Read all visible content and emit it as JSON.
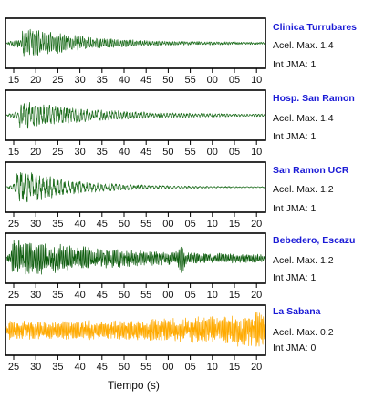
{
  "chart_data": [
    {
      "type": "line",
      "station": "Clinica Turrubares",
      "series_color": "#1a6b1a",
      "accel_label": "Acel. Max.",
      "accel_value": "1.4",
      "jma_label": "Int JMA:",
      "jma_value": "1",
      "tick_labels": [
        "15",
        "20",
        "25",
        "30",
        "35",
        "40",
        "45",
        "50",
        "55",
        "00",
        "05",
        "10"
      ],
      "waveform": {
        "onset": 0.06,
        "peak": 0.72,
        "decay": 4.2,
        "noise": 0.04,
        "freq": 1.0
      }
    },
    {
      "type": "line",
      "station": "Hosp. San Ramon",
      "series_color": "#1a6b1a",
      "accel_label": "Acel. Max.",
      "accel_value": "1.4",
      "jma_label": "Int JMA:",
      "jma_value": "1",
      "tick_labels": [
        "15",
        "20",
        "25",
        "30",
        "35",
        "40",
        "45",
        "50",
        "55",
        "00",
        "05",
        "10"
      ],
      "waveform": {
        "onset": 0.05,
        "peak": 0.62,
        "decay": 3.4,
        "noise": 0.03,
        "freq": 0.7
      }
    },
    {
      "type": "line",
      "station": "San Ramon UCR",
      "series_color": "#1a6b1a",
      "accel_label": "Acel. Max.",
      "accel_value": "1.2",
      "jma_label": "Int JMA:",
      "jma_value": "1",
      "tick_labels": [
        "25",
        "30",
        "35",
        "40",
        "45",
        "50",
        "55",
        "00",
        "05",
        "10",
        "15",
        "20"
      ],
      "waveform": {
        "onset": 0.04,
        "peak": 0.85,
        "decay": 4.8,
        "noise": 0.02,
        "freq": 0.55
      }
    },
    {
      "type": "line",
      "station": "Bebedero, Escazu",
      "series_color": "#0d5c0d",
      "accel_label": "Acel. Max.",
      "accel_value": "1.2",
      "jma_label": "Int JMA:",
      "jma_value": "1",
      "tick_labels": [
        "25",
        "30",
        "35",
        "40",
        "45",
        "50",
        "55",
        "00",
        "05",
        "10",
        "15",
        "20"
      ],
      "waveform": {
        "onset": 0.02,
        "peak": 0.78,
        "decay": 2.2,
        "noise": 0.09,
        "freq": 1.3,
        "burst_at": 0.68,
        "burst_amp": 0.45
      }
    },
    {
      "type": "line",
      "station": "La Sabana",
      "series_color": "#ffaa00",
      "accel_label": "Acel. Max.",
      "accel_value": "0.2",
      "jma_label": "Int JMA:",
      "jma_value": "0",
      "tick_labels": [
        "25",
        "30",
        "35",
        "40",
        "45",
        "50",
        "55",
        "00",
        "05",
        "10",
        "15",
        "20"
      ],
      "waveform": {
        "onset": 0.0,
        "peak": 0.0,
        "decay": 1.0,
        "noise": 0.55,
        "freq": 1.6,
        "ramp_end": 0.95
      }
    }
  ],
  "xlabel": "Tiempo (s)"
}
